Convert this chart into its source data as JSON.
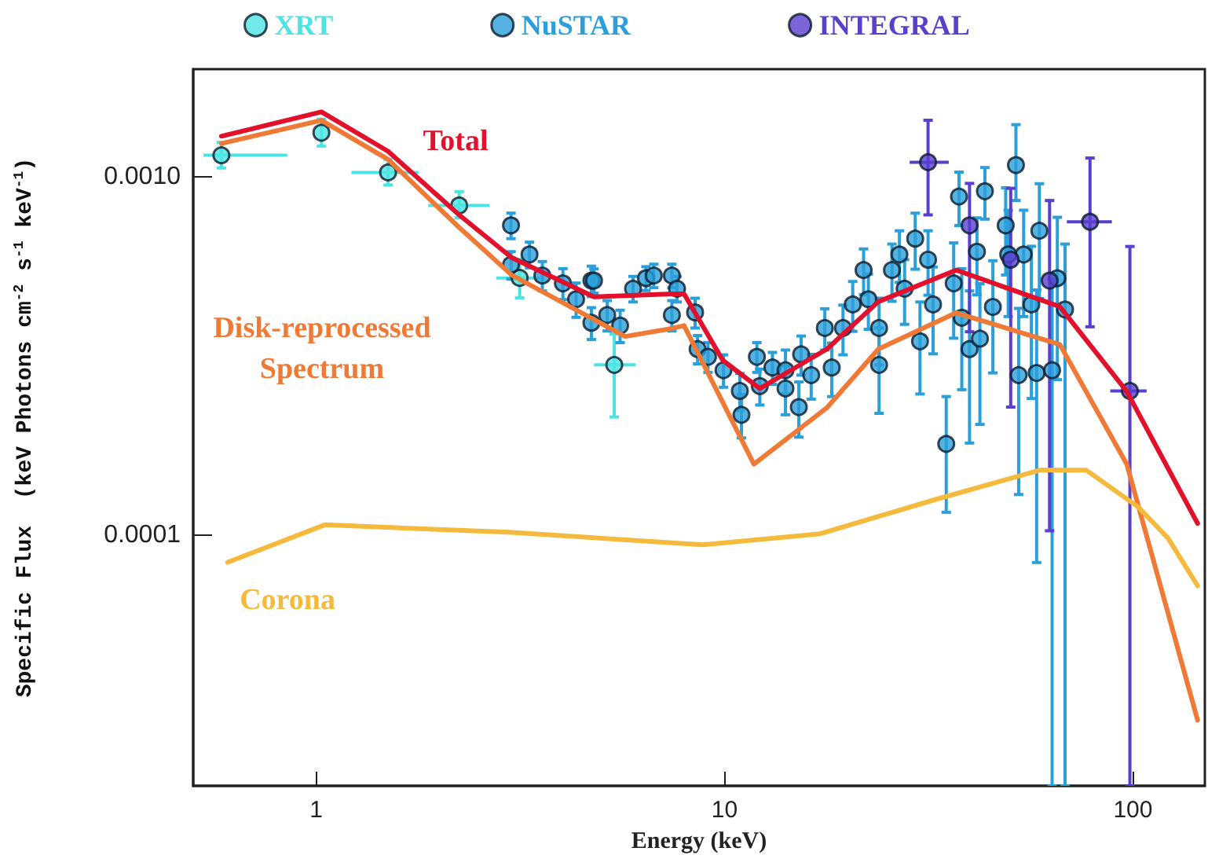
{
  "chart_data": {
    "type": "scatter",
    "xlabel": "Energy (keV)",
    "ylabel": "Specific Flux  (keV Photons cm$^{-2}$ s$^{-1}$ keV$^{-1}$)",
    "log": "xy",
    "xlim": [
      0.5,
      150
    ],
    "ylim": [
      2e-05,
      0.002
    ],
    "xticks": [
      1,
      10,
      100
    ],
    "yticks": [
      {
        "value": 0.001,
        "label": "0.0010"
      },
      {
        "value": 0.0001,
        "label": "0.0001"
      }
    ],
    "legend": "top",
    "series": [
      {
        "name": "XRT",
        "marker": "circle",
        "color": "#4de3e3",
        "x": [
          0.586,
          1.03,
          1.5,
          2.24,
          3.15,
          5.37
        ],
        "values": [
          0.00115,
          0.00133,
          0.00103,
          0.000833,
          0.000523,
          0.000299
        ],
        "errors": [
          [
            0.00106,
            0.00125
          ],
          [
            0.00122,
            0.00145
          ],
          [
            0.00095,
            0.00112
          ],
          [
            0.00077,
            0.00091
          ],
          [
            0.00046,
            0.00059
          ],
          [
            0.000214,
            0.000365
          ]
        ],
        "xerrors": [
          [
            0.53,
            0.85
          ],
          null,
          [
            1.22,
            1.78
          ],
          [
            1.88,
            2.66
          ],
          [
            2.76,
            3.53
          ],
          [
            4.79,
            6.06
          ]
        ]
      },
      {
        "name": "NuSTAR",
        "marker": "circle",
        "color": "#2b9fd9",
        "x": [
          3.0,
          3.33,
          3.0,
          3.58,
          4.02,
          4.33,
          4.72,
          4.72,
          5.16,
          4.79,
          5.55,
          5.97,
          6.42,
          6.71,
          7.43,
          7.65,
          7.43,
          8.47,
          8.59,
          9.11,
          9.94,
          10.9,
          11.0,
          12.0,
          12.2,
          13.1,
          14.1,
          14.1,
          15.2,
          15.4,
          16.3,
          17.6,
          18.3,
          19.5,
          20.6,
          21.9,
          22.5,
          23.9,
          23.9,
          25.7,
          26.8,
          27.6,
          29.3,
          30.1,
          31.5,
          32.4,
          34.9,
          36.4,
          37.5,
          38.1,
          39.8,
          41.5,
          42.2,
          43.4,
          45.4,
          48.8,
          49.5,
          51.7,
          52.5,
          54.0,
          56.4,
          58.1,
          59.0,
          63.4,
          65.3,
          68.2
        ],
        "values": [
          0.000733,
          0.000608,
          0.000569,
          0.000531,
          0.000505,
          0.000456,
          0.000514,
          0.000392,
          0.000412,
          0.000514,
          0.000385,
          0.000488,
          0.000522,
          0.000531,
          0.000531,
          0.000488,
          0.000412,
          0.000419,
          0.000331,
          0.000315,
          0.000289,
          0.000253,
          0.000217,
          0.000315,
          0.000261,
          0.000294,
          0.000289,
          0.000257,
          0.000228,
          0.00032,
          0.00028,
          0.000379,
          0.000294,
          0.000379,
          0.000441,
          0.00055,
          0.000456,
          0.000379,
          0.000299,
          0.00055,
          0.000608,
          0.000488,
          0.000673,
          0.000348,
          0.000588,
          0.000441,
          0.00018,
          0.000505,
          0.000882,
          0.000405,
          0.000331,
          0.000619,
          0.000354,
          0.000913,
          0.000434,
          0.000733,
          0.000608,
          0.00108,
          0.00028,
          0.000608,
          0.000441,
          0.000284,
          0.000708,
          0.000289,
          0.000522,
          0.000427
        ],
        "errors": [
          6e-05,
          5e-05,
          5e-05,
          5e-05,
          5e-05,
          5e-05,
          5e-05,
          4e-05,
          4e-05,
          4e-05,
          4e-05,
          4e-05,
          4e-05,
          4e-05,
          4e-05,
          4e-05,
          4e-05,
          4e-05,
          3e-05,
          3e-05,
          3e-05,
          3e-05,
          3e-05,
          3e-05,
          3e-05,
          3e-05,
          4e-05,
          4e-05,
          4e-05,
          4e-05,
          4e-05,
          5e-05,
          5e-05,
          6e-05,
          7e-05,
          8e-05,
          8e-05,
          8e-05,
          8e-05,
          0.0001,
          0.0001,
          0.0001,
          0.00012,
          0.0001,
          0.00012,
          0.00012,
          [
            0.000116,
            0.000244
          ],
          0.00015,
          0.00015,
          0.00015,
          0.00015,
          0.00015,
          0.00015,
          0.00015,
          0.00015,
          0.0002,
          0.0002,
          [
            0.00086,
            0.0014
          ],
          0.00015,
          0.0002,
          0.0002,
          0.0002,
          0.00025,
          [
            2e-05,
            0.00052
          ],
          0.00025,
          [
            2e-05,
            0.00065
          ]
        ]
      },
      {
        "name": "INTEGRAL",
        "marker": "circle",
        "color": "#5a3fcf",
        "x": [
          31.5,
          39.8,
          50.2,
          62.5,
          78.5,
          98.3
        ],
        "values": [
          0.0011,
          0.000733,
          0.000588,
          0.000514,
          0.00075,
          0.000253
        ],
        "errors": [
          [
            0.000784,
            0.00144
          ],
          [
            0.00037,
            0.00096
          ],
          [
            0.000228,
            0.00093
          ],
          [
            0.000103,
            0.00086
          ],
          [
            0.000382,
            0.00113
          ],
          [
            2e-05,
            0.00064
          ]
        ],
        "xerrors": [
          [
            28.4,
            35.4
          ],
          null,
          null,
          null,
          [
            68.9,
            88.8
          ],
          [
            88,
            108
          ]
        ]
      },
      {
        "name": "Total",
        "type": "line",
        "marker": "none",
        "color": "#e3102c",
        "x": [
          0.586,
          1.03,
          1.5,
          2.24,
          3.01,
          4.79,
          7.43,
          7.96,
          9.9,
          12.2,
          17.8,
          23.8,
          36.9,
          66.2,
          96.6,
          144
        ],
        "values": [
          0.0013,
          0.00152,
          0.00118,
          0.000784,
          0.000596,
          0.000463,
          0.000472,
          0.000472,
          0.000308,
          0.000257,
          0.000331,
          0.000449,
          0.00055,
          0.000435,
          0.000252,
          0.000108
        ]
      },
      {
        "name": "Disk-reprocessed\nSpectrum",
        "type": "line",
        "marker": "none",
        "color": "#f07a35",
        "x": [
          0.586,
          1.03,
          1.5,
          2.24,
          3.01,
          5.71,
          7.43,
          7.96,
          11.8,
          17.8,
          23.8,
          36.9,
          66.2,
          96.6,
          144
        ],
        "values": [
          0.00124,
          0.00144,
          0.00112,
          0.000723,
          0.000533,
          0.000359,
          0.000378,
          0.000385,
          0.000158,
          0.000227,
          0.000331,
          0.000418,
          0.000341,
          0.000158,
          3.05e-05
        ]
      },
      {
        "name": "Corona",
        "type": "line",
        "marker": "none",
        "color": "#f5b93c",
        "x": [
          0.607,
          1.05,
          2.96,
          8.85,
          17.1,
          32.9,
          59.1,
          76.9,
          103,
          122,
          144
        ],
        "values": [
          8.41e-05,
          0.000107,
          0.000102,
          9.41e-05,
          0.000101,
          0.000126,
          0.000152,
          0.000152,
          0.00012,
          9.81e-05,
          7.23e-05
        ]
      }
    ]
  }
}
